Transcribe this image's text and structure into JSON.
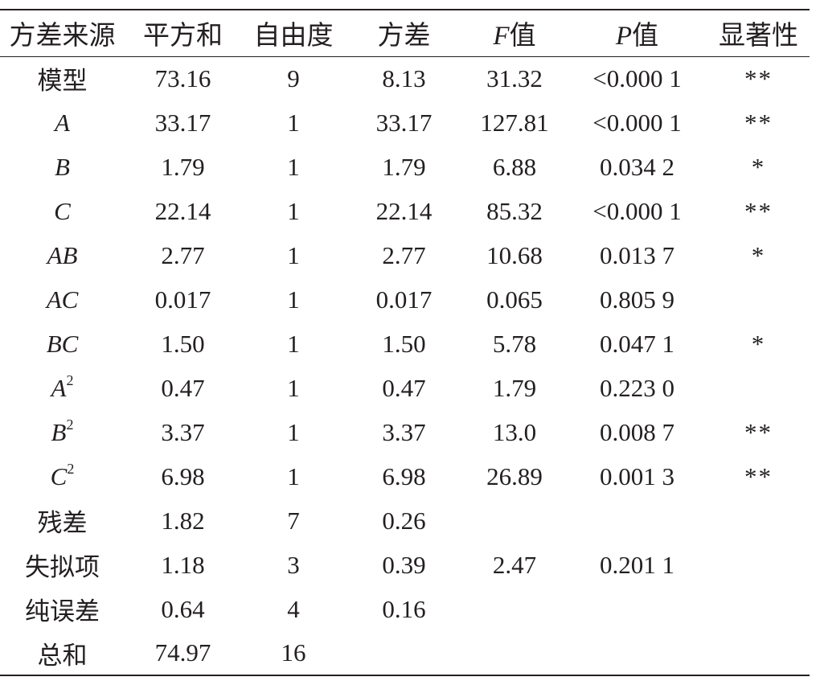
{
  "table": {
    "headers": {
      "source": "方差来源",
      "sum_sq": "平方和",
      "df": "自由度",
      "mean_sq": "方差",
      "f_italic": "F",
      "f_suffix": "值",
      "p_italic": "P",
      "p_suffix": "值",
      "significance": "显著性"
    },
    "rows": [
      {
        "source": "模型",
        "italic": false,
        "sup": "",
        "sum_sq": "73.16",
        "df": "9",
        "mean_sq": "8.13",
        "f": "31.32",
        "p": "<0.000 1",
        "sig": "**"
      },
      {
        "source": "A",
        "italic": true,
        "sup": "",
        "sum_sq": "33.17",
        "df": "1",
        "mean_sq": "33.17",
        "f": "127.81",
        "p": "<0.000 1",
        "sig": "**"
      },
      {
        "source": "B",
        "italic": true,
        "sup": "",
        "sum_sq": "1.79",
        "df": "1",
        "mean_sq": "1.79",
        "f": "6.88",
        "p": "0.034 2",
        "sig": "*"
      },
      {
        "source": "C",
        "italic": true,
        "sup": "",
        "sum_sq": "22.14",
        "df": "1",
        "mean_sq": "22.14",
        "f": "85.32",
        "p": "<0.000 1",
        "sig": "**"
      },
      {
        "source": "AB",
        "italic": true,
        "sup": "",
        "sum_sq": "2.77",
        "df": "1",
        "mean_sq": "2.77",
        "f": "10.68",
        "p": "0.013 7",
        "sig": "*"
      },
      {
        "source": "AC",
        "italic": true,
        "sup": "",
        "sum_sq": "0.017",
        "df": "1",
        "mean_sq": "0.017",
        "f": "0.065",
        "p": "0.805 9",
        "sig": ""
      },
      {
        "source": "BC",
        "italic": true,
        "sup": "",
        "sum_sq": "1.50",
        "df": "1",
        "mean_sq": "1.50",
        "f": "5.78",
        "p": "0.047 1",
        "sig": "*"
      },
      {
        "source": "A",
        "italic": true,
        "sup": "2",
        "sum_sq": "0.47",
        "df": "1",
        "mean_sq": "0.47",
        "f": "1.79",
        "p": "0.223 0",
        "sig": ""
      },
      {
        "source": "B",
        "italic": true,
        "sup": "2",
        "sum_sq": "3.37",
        "df": "1",
        "mean_sq": "3.37",
        "f": "13.0",
        "p": "0.008 7",
        "sig": "**"
      },
      {
        "source": "C",
        "italic": true,
        "sup": "2",
        "sum_sq": "6.98",
        "df": "1",
        "mean_sq": "6.98",
        "f": "26.89",
        "p": "0.001 3",
        "sig": "**"
      },
      {
        "source": "残差",
        "italic": false,
        "sup": "",
        "sum_sq": "1.82",
        "df": "7",
        "mean_sq": "0.26",
        "f": "",
        "p": "",
        "sig": ""
      },
      {
        "source": "失拟项",
        "italic": false,
        "sup": "",
        "sum_sq": "1.18",
        "df": "3",
        "mean_sq": "0.39",
        "f": "2.47",
        "p": "0.201 1",
        "sig": ""
      },
      {
        "source": "纯误差",
        "italic": false,
        "sup": "",
        "sum_sq": "0.64",
        "df": "4",
        "mean_sq": "0.16",
        "f": "",
        "p": "",
        "sig": ""
      },
      {
        "source": "总和",
        "italic": false,
        "sup": "",
        "sum_sq": "74.97",
        "df": "16",
        "mean_sq": "",
        "f": "",
        "p": "",
        "sig": ""
      }
    ]
  }
}
